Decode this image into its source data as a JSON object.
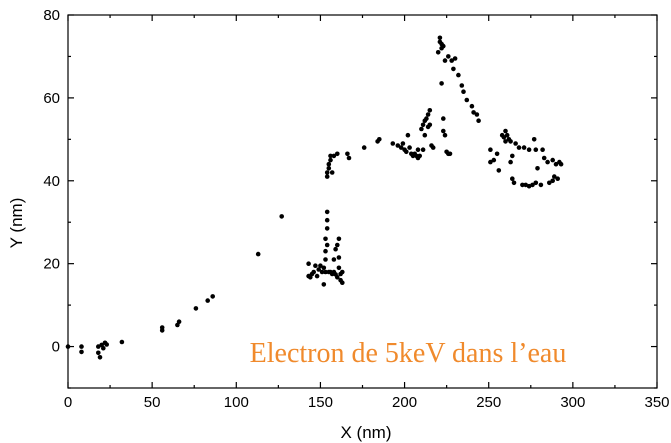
{
  "chart_data": {
    "type": "scatter",
    "title": "",
    "xlabel": "X (nm)",
    "ylabel": "Y (nm)",
    "xlim": [
      0,
      350
    ],
    "ylim": [
      -10,
      80
    ],
    "xticks": [
      "0",
      "50",
      "100",
      "150",
      "200",
      "250",
      "300",
      "350"
    ],
    "yticks": [
      "0",
      "20",
      "40",
      "60",
      "80"
    ],
    "grid": false,
    "annotation": {
      "text": "Electron de 5keV dans l’eau",
      "color": "#f08a2c"
    },
    "points": [
      [
        0,
        0
      ],
      [
        8,
        0
      ],
      [
        8,
        -1.3
      ],
      [
        18,
        0
      ],
      [
        18,
        -1.5
      ],
      [
        19,
        -2.6
      ],
      [
        20,
        0.4
      ],
      [
        21,
        -0.4
      ],
      [
        22,
        0.9
      ],
      [
        23,
        0.5
      ],
      [
        32,
        1.1
      ],
      [
        56,
        4.6
      ],
      [
        56,
        3.9
      ],
      [
        65,
        5.2
      ],
      [
        66,
        6.0
      ],
      [
        76,
        9.2
      ],
      [
        83,
        11.1
      ],
      [
        86,
        12.1
      ],
      [
        113,
        22.3
      ],
      [
        127,
        31.4
      ],
      [
        143,
        20
      ],
      [
        143,
        17
      ],
      [
        144,
        16.7
      ],
      [
        145,
        17.5
      ],
      [
        146,
        18
      ],
      [
        147,
        19.5
      ],
      [
        148,
        17
      ],
      [
        149,
        18.6
      ],
      [
        150,
        19.5
      ],
      [
        151,
        18
      ],
      [
        152,
        19
      ],
      [
        152,
        15
      ],
      [
        153,
        18
      ],
      [
        153,
        21
      ],
      [
        153,
        23
      ],
      [
        153,
        26
      ],
      [
        154,
        24.5
      ],
      [
        154,
        28.5
      ],
      [
        154,
        30.5
      ],
      [
        154,
        32.5
      ],
      [
        155,
        18
      ],
      [
        156,
        18
      ],
      [
        157,
        17.5
      ],
      [
        158,
        18
      ],
      [
        158,
        21
      ],
      [
        159,
        23.5
      ],
      [
        159,
        17.4
      ],
      [
        160,
        16.7
      ],
      [
        160,
        24.5
      ],
      [
        161,
        19
      ],
      [
        161,
        26
      ],
      [
        161,
        21.5
      ],
      [
        162,
        17.5
      ],
      [
        162,
        16
      ],
      [
        163,
        18
      ],
      [
        163,
        15.4
      ],
      [
        154,
        41
      ],
      [
        154,
        42
      ],
      [
        155,
        43
      ],
      [
        155,
        44
      ],
      [
        156,
        45
      ],
      [
        156,
        46
      ],
      [
        157,
        42
      ],
      [
        158,
        46
      ],
      [
        160,
        46.5
      ],
      [
        166,
        46.5
      ],
      [
        167,
        45.5
      ],
      [
        176,
        48
      ],
      [
        184,
        49.5
      ],
      [
        185,
        50
      ],
      [
        193,
        49
      ],
      [
        196,
        48.5
      ],
      [
        198,
        48
      ],
      [
        199,
        49
      ],
      [
        200,
        47.5
      ],
      [
        201,
        47
      ],
      [
        202,
        51
      ],
      [
        203,
        48
      ],
      [
        204,
        46.5
      ],
      [
        205,
        46
      ],
      [
        206,
        46.5
      ],
      [
        207,
        46
      ],
      [
        208,
        45.5
      ],
      [
        208,
        47.5
      ],
      [
        209,
        46
      ],
      [
        210,
        52.5
      ],
      [
        211,
        47.5
      ],
      [
        211,
        53.5
      ],
      [
        212,
        51
      ],
      [
        212,
        54.5
      ],
      [
        213,
        55
      ],
      [
        214,
        56
      ],
      [
        214,
        53
      ],
      [
        215,
        57
      ],
      [
        215,
        53.5
      ],
      [
        216,
        48.5
      ],
      [
        217,
        48
      ],
      [
        220,
        71
      ],
      [
        221,
        73.5
      ],
      [
        221,
        74.5
      ],
      [
        222,
        73
      ],
      [
        222,
        72
      ],
      [
        222,
        63.5
      ],
      [
        223,
        72.5
      ],
      [
        223,
        55
      ],
      [
        223,
        52
      ],
      [
        224,
        51
      ],
      [
        224,
        69
      ],
      [
        225,
        47
      ],
      [
        226,
        46.5
      ],
      [
        226,
        70
      ],
      [
        227,
        46.5
      ],
      [
        228,
        69
      ],
      [
        229,
        67
      ],
      [
        230,
        69.5
      ],
      [
        232,
        65.5
      ],
      [
        234,
        63
      ],
      [
        235,
        61.5
      ],
      [
        237,
        59.5
      ],
      [
        240,
        58
      ],
      [
        241,
        56.5
      ],
      [
        243,
        56
      ],
      [
        244,
        54.5
      ],
      [
        251,
        44.5
      ],
      [
        251,
        47.5
      ],
      [
        253,
        45
      ],
      [
        255,
        46.5
      ],
      [
        256,
        42.5
      ],
      [
        258,
        51
      ],
      [
        259,
        50.5
      ],
      [
        260,
        49.5
      ],
      [
        260,
        52
      ],
      [
        261,
        51
      ],
      [
        262,
        50
      ],
      [
        263,
        44.5
      ],
      [
        263,
        49.5
      ],
      [
        264,
        40.5
      ],
      [
        264,
        46
      ],
      [
        265,
        39.5
      ],
      [
        266,
        49
      ],
      [
        268,
        48
      ],
      [
        270,
        39
      ],
      [
        271,
        48
      ],
      [
        272,
        39
      ],
      [
        274,
        38.7
      ],
      [
        274,
        47.5
      ],
      [
        276,
        39
      ],
      [
        277,
        50
      ],
      [
        278,
        39.5
      ],
      [
        278,
        47.5
      ],
      [
        279,
        43
      ],
      [
        281,
        39
      ],
      [
        282,
        47.5
      ],
      [
        283,
        45.5
      ],
      [
        285,
        44.5
      ],
      [
        286,
        39.5
      ],
      [
        288,
        40
      ],
      [
        288,
        45
      ],
      [
        289,
        41
      ],
      [
        290,
        44
      ],
      [
        291,
        40.5
      ],
      [
        292,
        44.5
      ],
      [
        293,
        44
      ]
    ]
  }
}
